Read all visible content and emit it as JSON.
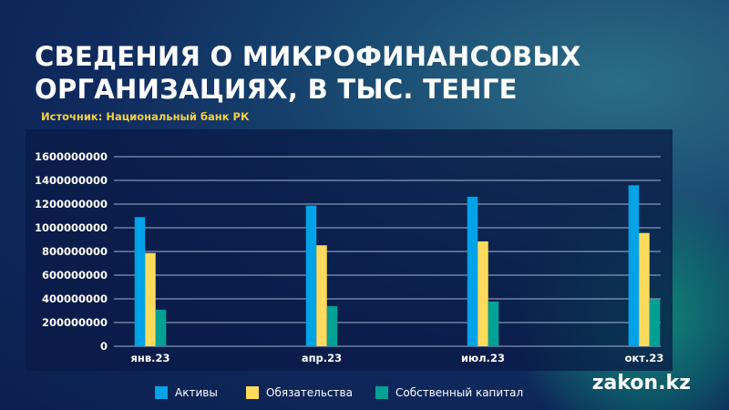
{
  "title_lines": [
    "СВЕДЕНИЯ О МИКРОФИНАНСОВЫХ",
    "ОРГАНИЗАЦИЯХ, В ТЫС. ТЕНГЕ"
  ],
  "source": "Источник: Национальный банк РК",
  "logo": "zakon.kz",
  "chart_data": {
    "type": "bar",
    "categories": [
      "янв.23",
      "апр.23",
      "июл.23",
      "окт.23"
    ],
    "series": [
      {
        "name": "Активы",
        "color": "#00a3e8",
        "values": [
          1090000000,
          1187000000,
          1262000000,
          1359000000
        ]
      },
      {
        "name": "Обязательства",
        "color": "#fedb5c",
        "values": [
          787000000,
          852000000,
          885000000,
          956000000
        ]
      },
      {
        "name": "Собственный капитал",
        "color": "#00a195",
        "values": [
          308000000,
          338000000,
          377000000,
          398000000
        ]
      }
    ],
    "ylim": [
      0,
      1600000000
    ],
    "yticks": [
      "0",
      "200000000",
      "400000000",
      "600000000",
      "800000000",
      "1000000000",
      "1200000000",
      "1400000000",
      "1600000000"
    ],
    "grid": true,
    "legend": "bottom"
  }
}
